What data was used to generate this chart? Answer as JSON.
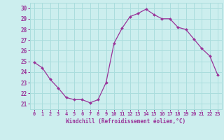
{
  "hours": [
    0,
    1,
    2,
    3,
    4,
    5,
    6,
    7,
    8,
    9,
    10,
    11,
    12,
    13,
    14,
    15,
    16,
    17,
    18,
    19,
    20,
    21,
    22,
    23
  ],
  "windchill": [
    24.9,
    24.4,
    23.3,
    22.5,
    21.6,
    21.4,
    21.4,
    21.1,
    21.4,
    23.0,
    26.7,
    28.1,
    29.2,
    29.5,
    29.9,
    29.4,
    29.0,
    29.0,
    28.2,
    28.0,
    27.1,
    26.2,
    25.5,
    23.7
  ],
  "line_color": "#993399",
  "marker": "D",
  "marker_size": 2.0,
  "bg_color": "#cceeee",
  "grid_color": "#aadddd",
  "xlabel": "Windchill (Refroidissement éolien,°C)",
  "xlabel_color": "#993399",
  "ytick_color": "#993399",
  "xtick_color": "#993399",
  "ylim": [
    20.5,
    30.5
  ],
  "xlim": [
    -0.5,
    23.5
  ],
  "yticks": [
    21,
    22,
    23,
    24,
    25,
    26,
    27,
    28,
    29,
    30
  ],
  "xticks": [
    0,
    1,
    2,
    3,
    4,
    5,
    6,
    7,
    8,
    9,
    10,
    11,
    12,
    13,
    14,
    15,
    16,
    17,
    18,
    19,
    20,
    21,
    22,
    23
  ]
}
